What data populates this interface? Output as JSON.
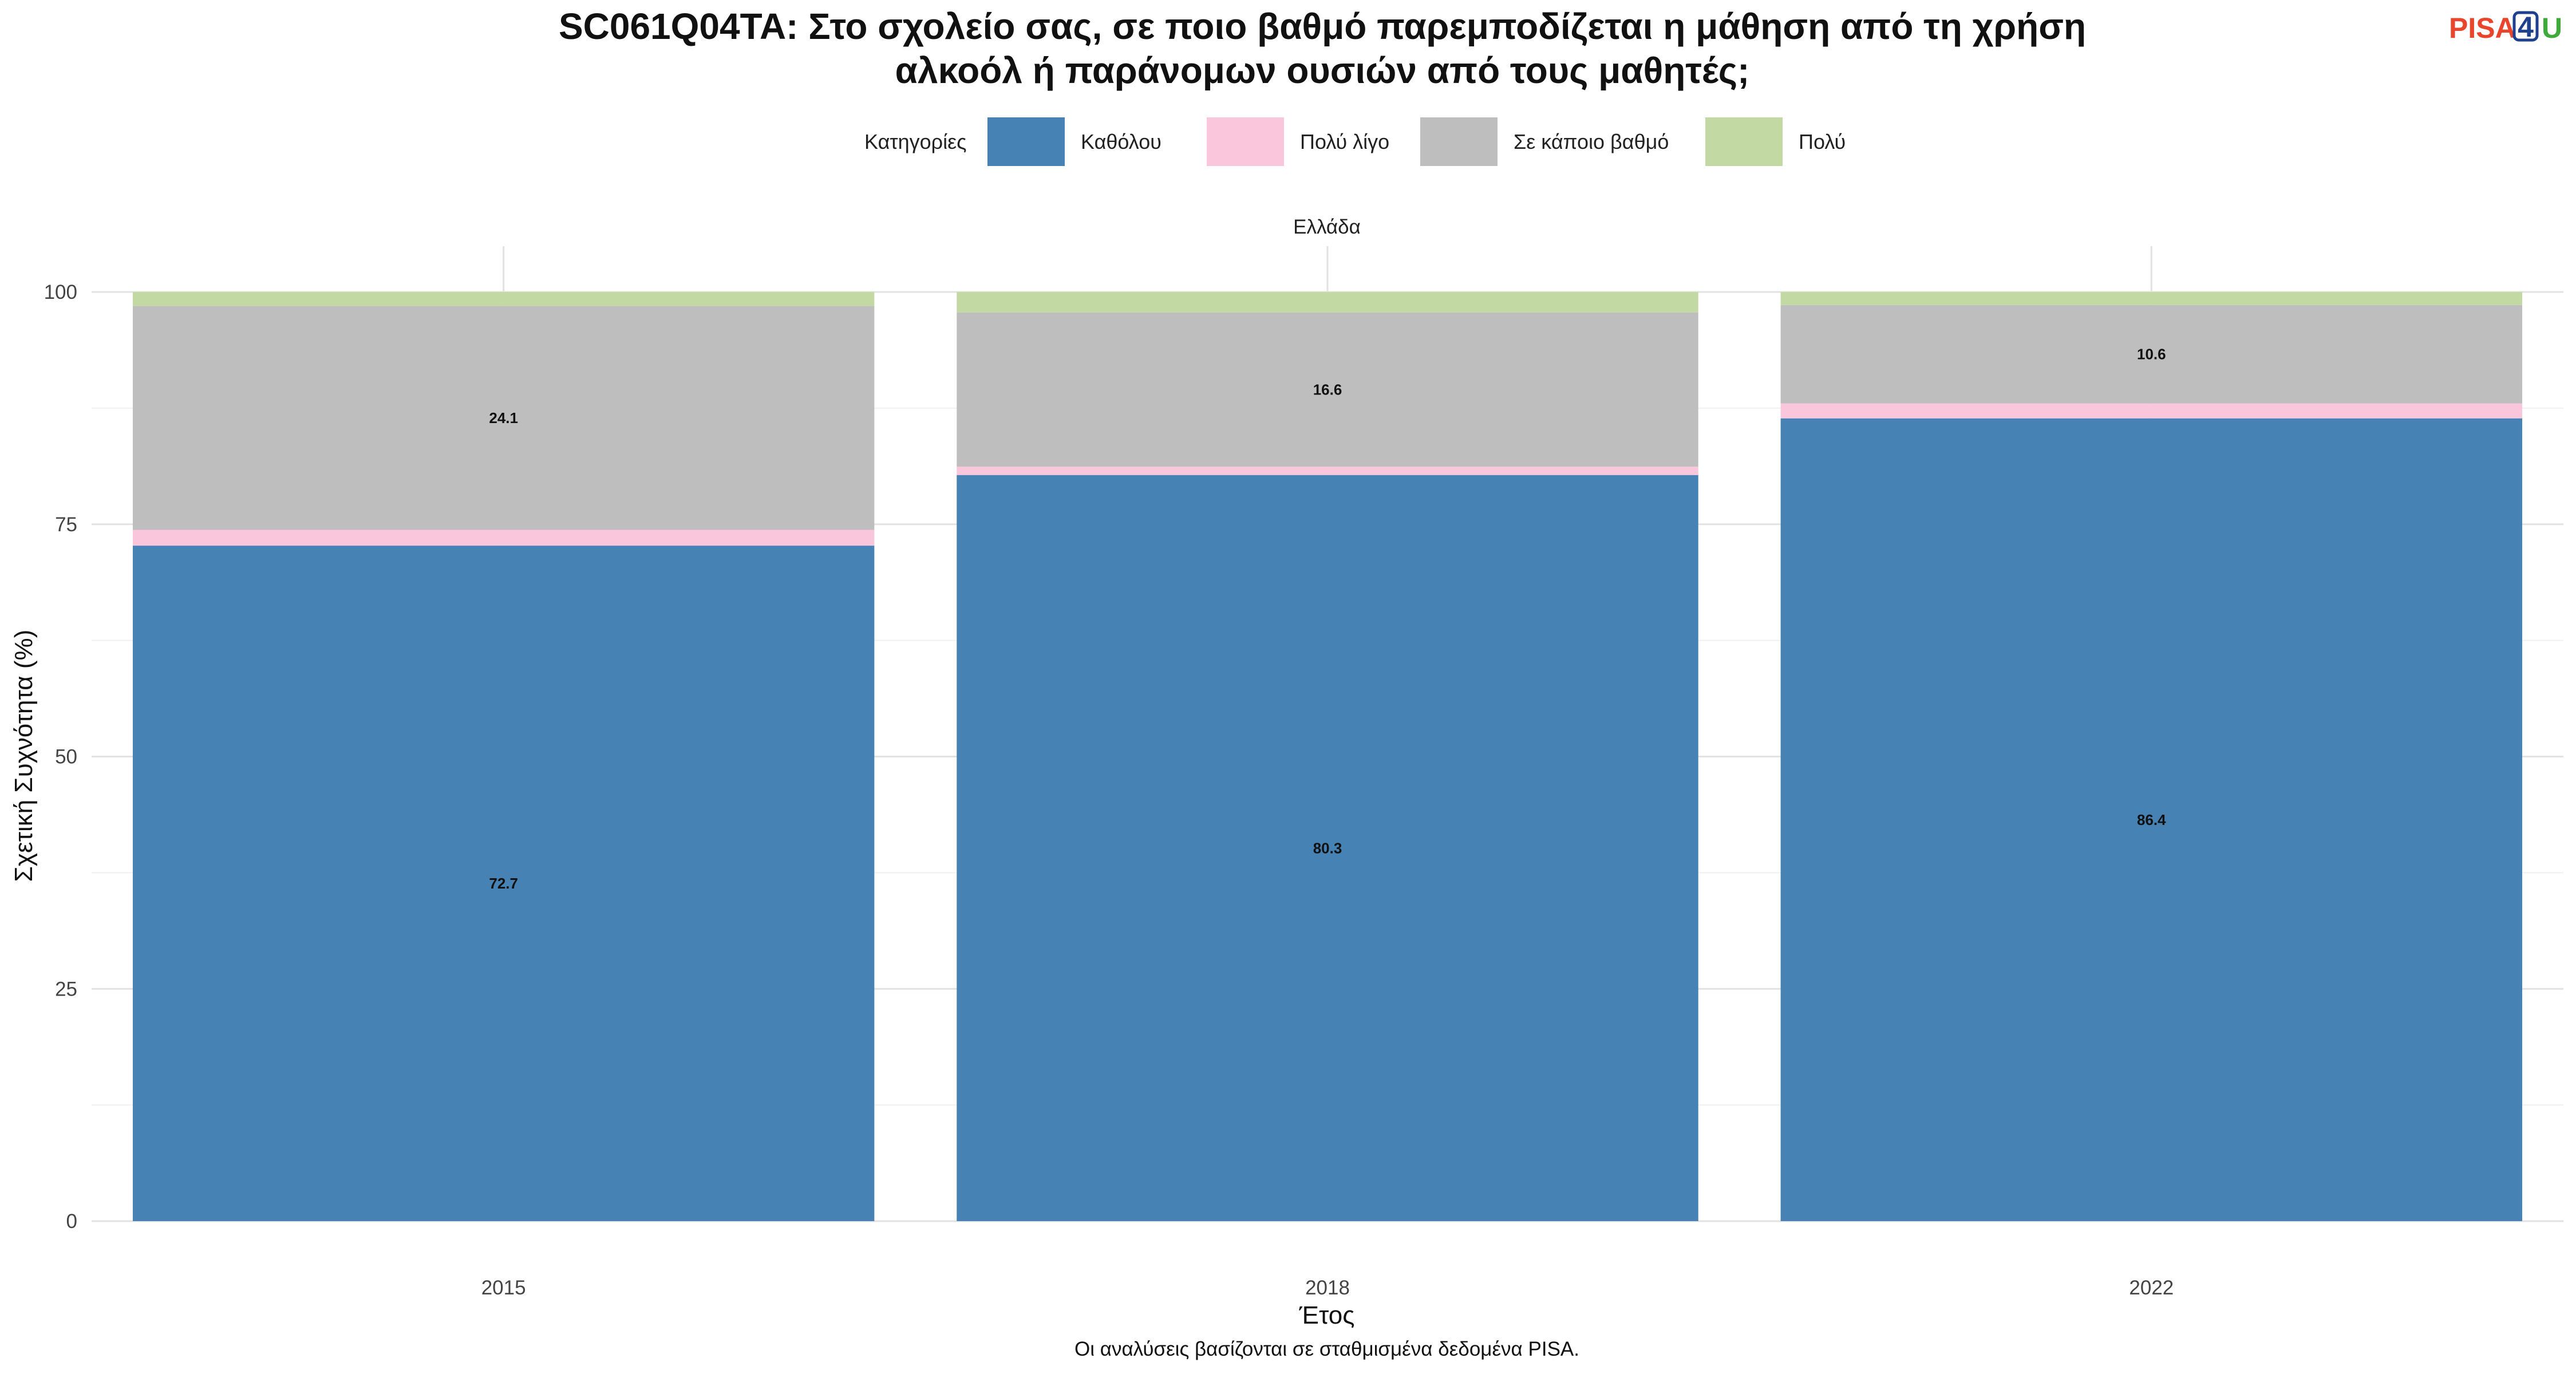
{
  "logo": {
    "prefix": "PISA",
    "number": "4",
    "suffix": "U"
  },
  "chart_data": {
    "type": "bar",
    "stacked": true,
    "title_line1": "SC061Q04TA: Στο σχολείο σας, σε ποιο βαθμό παρεμποδίζεται η μάθηση από τη χρήση",
    "title_line2": "αλκοόλ ή παράνομων ουσιών από τους μαθητές;",
    "facet_label": "Ελλάδα",
    "xlabel": "Έτος",
    "ylabel": "Σχετική Συχνότητα (%)",
    "caption": "Οι αναλύσεις βασίζονται σε σταθμισμένα δεδομένα PISA.",
    "legend_title": "Κατηγορίες",
    "legend_position": "top",
    "categories": [
      "2015",
      "2018",
      "2022"
    ],
    "ylim": [
      0,
      100
    ],
    "yticks": [
      0,
      25,
      50,
      75,
      100
    ],
    "grid": true,
    "series": [
      {
        "name": "Καθόλου",
        "color": "#4682B4",
        "values": [
          72.7,
          80.3,
          86.4
        ]
      },
      {
        "name": "Πολύ λίγο",
        "color": "#F9C6DC",
        "values": [
          1.7,
          0.9,
          1.6
        ]
      },
      {
        "name": "Σε κάποιο βαθμό",
        "color": "#BEBEBE",
        "values": [
          24.1,
          16.6,
          10.6
        ]
      },
      {
        "name": "Πολύ",
        "color": "#C3D9A4",
        "values": [
          1.5,
          2.2,
          1.4
        ]
      }
    ],
    "data_labels": [
      {
        "series": "Καθόλου",
        "values": [
          "72.7",
          "80.3",
          "86.4"
        ]
      },
      {
        "series": "Σε κάποιο βαθμό",
        "values": [
          "24.1",
          "16.6",
          "10.6"
        ]
      }
    ]
  }
}
